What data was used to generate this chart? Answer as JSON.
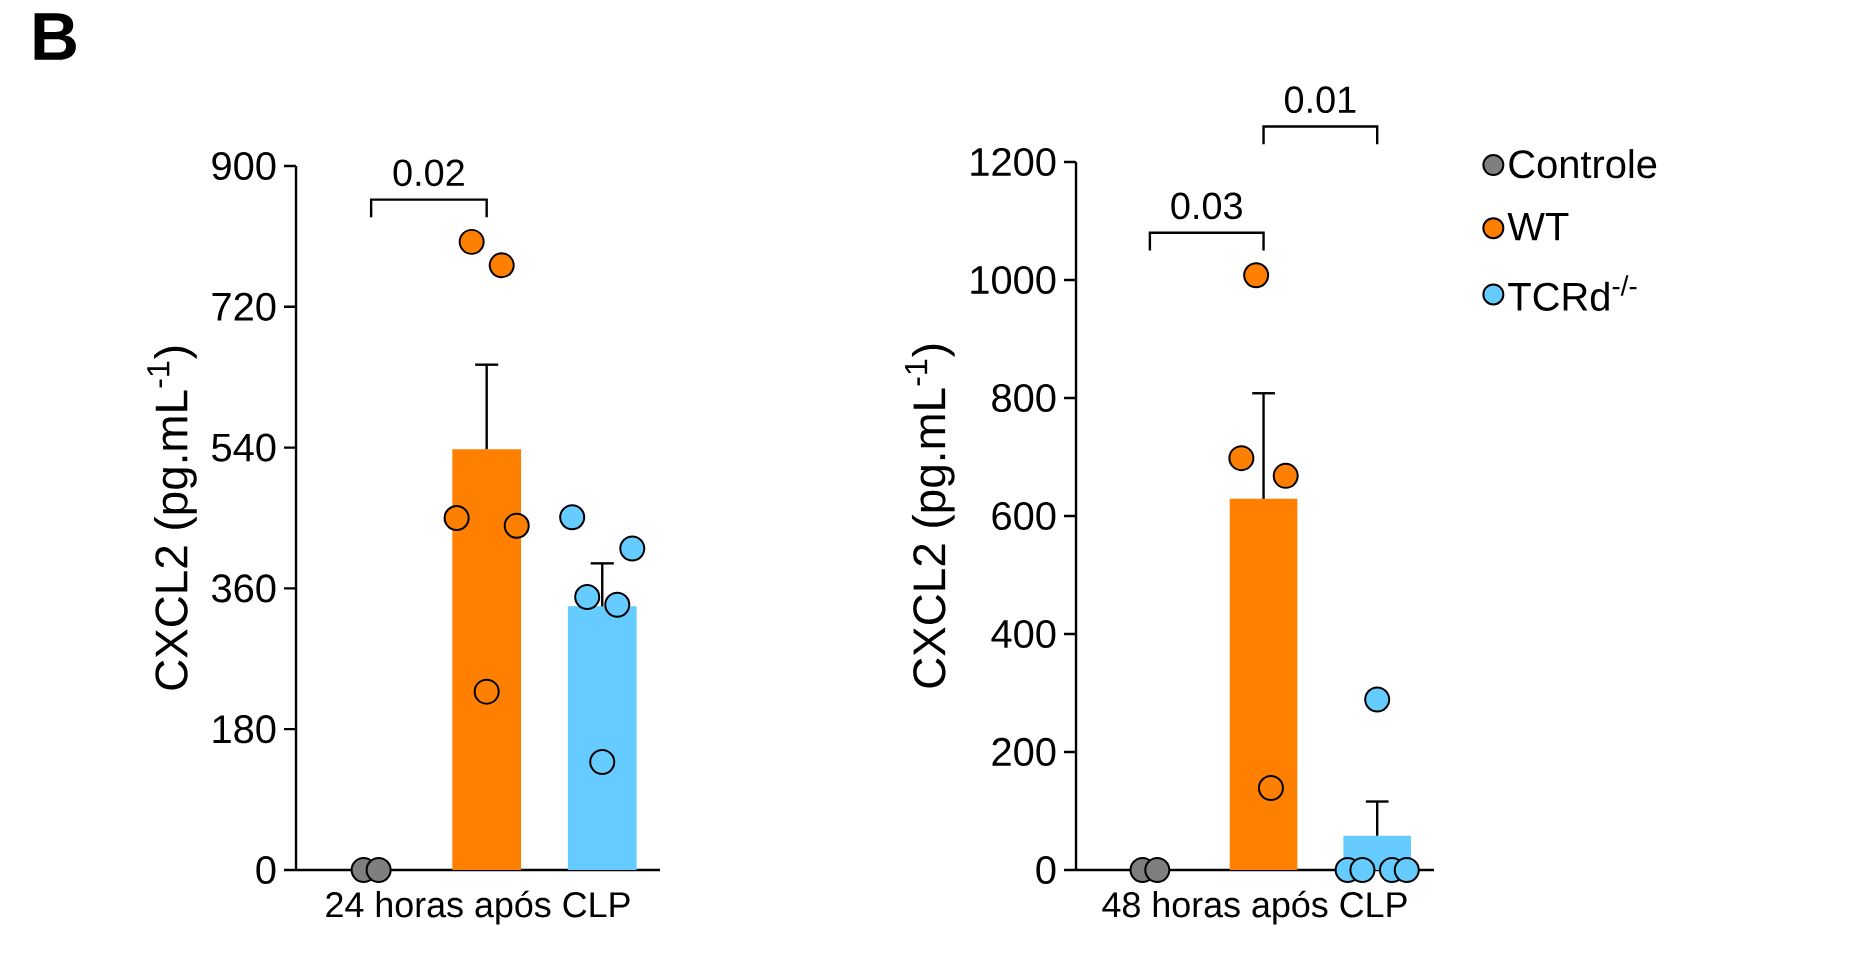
{
  "chart_data": [
    {
      "type": "bar",
      "title": "B",
      "categories": [
        null,
        null,
        null
      ],
      "xlabel": "24 horas após CLP",
      "ylabel": "CXCL2 (pg.mL$^{-1}$)",
      "ylim": [
        0,
        900
      ],
      "yticks": [
        0,
        180,
        360,
        540,
        720,
        900
      ],
      "marker": "circle",
      "legend": false,
      "annotations": [
        "0.02"
      ],
      "series": [
        {
          "color": "#7f7f7f",
          "values": [
            0,
            null,
            null
          ]
        },
        {
          "color": "#ff7f00",
          "values": [
            null,
            538,
            null
          ],
          "errors": [
            null,
            [
              538,
              646
            ],
            null
          ]
        },
        {
          "color": "#66ccff",
          "values": [
            null,
            null,
            337
          ],
          "errors": [
            null,
            null,
            [
              337,
              392
            ]
          ]
        },
        {
          "type": "scatter",
          "colors": [
            "#7f7f7f",
            "#ff7f00",
            "#66ccff"
          ],
          "values": [
            0,
            450,
            451
          ]
        },
        {
          "type": "scatter",
          "colors": [
            "#7f7f7f",
            "#ff7f00",
            "#66ccff"
          ],
          "values": [
            0,
            803,
            349
          ]
        },
        {
          "type": "scatter",
          "colors": [
            null,
            "#ff7f00",
            "#66ccff"
          ],
          "values": [
            null,
            228,
            138
          ]
        },
        {
          "type": "scatter",
          "colors": [
            null,
            "#ff7f00",
            "#66ccff"
          ],
          "values": [
            null,
            773,
            339
          ]
        },
        {
          "type": "scatter",
          "colors": [
            null,
            "#ff7f00",
            "#66ccff"
          ],
          "values": [
            null,
            440,
            411
          ]
        }
      ]
    },
    {
      "type": "bar",
      "categories": [
        null,
        null,
        null
      ],
      "xlabel": "48 horas após CLP",
      "ylabel": "CXCL2 (pg.mL$^{-1}$)",
      "ylim": [
        0,
        1200
      ],
      "yticks": [
        0,
        200,
        400,
        600,
        800,
        1000,
        1200
      ],
      "marker": "circle",
      "legend": "right",
      "annotations": [
        "0.03",
        "0.01"
      ],
      "series": [
        {
          "name": "Controle",
          "color": "#7f7f7f",
          "values": [
            0,
            null,
            null
          ]
        },
        {
          "name": "WT",
          "color": "#ff7f00",
          "values": [
            null,
            629,
            null
          ],
          "errors": [
            null,
            [
              629,
              808
            ],
            null
          ]
        },
        {
          "name": "TCRd$^{-/-}$",
          "color": "#66ccff",
          "values": [
            null,
            null,
            58
          ],
          "errors": [
            null,
            null,
            [
              58,
              116
            ]
          ]
        },
        {
          "type": "scatter",
          "colors": [
            "#7f7f7f",
            "#ff7f00",
            "#66ccff"
          ],
          "values": [
            0,
            698,
            0
          ]
        },
        {
          "type": "scatter",
          "colors": [
            "#7f7f7f",
            "#ff7f00",
            "#66ccff"
          ],
          "values": [
            0,
            1008,
            0
          ]
        },
        {
          "type": "scatter",
          "colors": [
            null,
            "#ff7f00",
            "#66ccff"
          ],
          "values": [
            null,
            139,
            289
          ]
        },
        {
          "type": "scatter",
          "colors": [
            null,
            "#ff7f00",
            "#66ccff"
          ],
          "values": [
            null,
            668,
            0
          ]
        },
        {
          "type": "scatter",
          "colors": [
            null,
            null,
            "#66ccff"
          ],
          "values": [
            null,
            null,
            0
          ]
        }
      ]
    }
  ]
}
